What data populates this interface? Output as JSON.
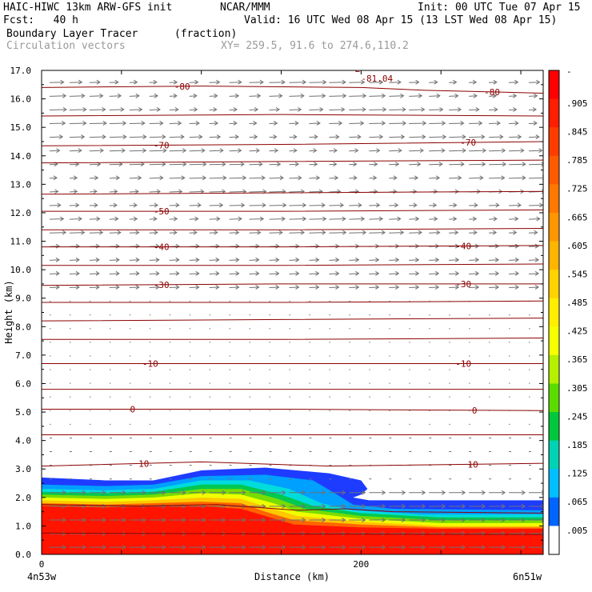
{
  "header": {
    "model": "HAIC-HIWC 13km ARW-GFS init",
    "org": "NCAR/MMM",
    "init": "Init: 00 UTC Tue 07 Apr 15",
    "fcst": "Fcst:   40 h",
    "valid": "Valid: 16 UTC Wed 08 Apr 15 (13 LST Wed 08 Apr 15)",
    "field": "Boundary Layer Tracer",
    "field_units": "(fraction)",
    "overlay": "Circulation vectors",
    "xy": "XY= 259.5, 91.6 to 274.6,110.2"
  },
  "colors": {
    "contour": "#8b0000",
    "vector": "#707070",
    "bar_top": "#ff0000"
  },
  "chart_data": {
    "type": "heatmap",
    "xlabel": "Distance (km)",
    "ylabel": "Height (km)",
    "xlim": [
      0,
      314
    ],
    "ylim": [
      0,
      17
    ],
    "x_ticks": [
      {
        "value": 0,
        "label": "0"
      },
      {
        "value": 200,
        "label": "200"
      }
    ],
    "x_end_labels": {
      "left": "4n53w",
      "right": "6n51w"
    },
    "y_ticks": [
      "0.0",
      "1.0",
      "2.0",
      "3.0",
      "4.0",
      "5.0",
      "6.0",
      "7.0",
      "8.0",
      "9.0",
      "10.0",
      "11.0",
      "12.0",
      "13.0",
      "14.0",
      "15.0",
      "16.0",
      "17.0"
    ],
    "colorbar": {
      "labels": [
        "-",
        ".905",
        ".845",
        ".785",
        ".725",
        ".665",
        ".605",
        ".545",
        ".485",
        ".425",
        ".365",
        ".305",
        ".245",
        ".185",
        ".125",
        ".065",
        ".005"
      ],
      "colors": [
        "#ff0000",
        "#ff1e00",
        "#ff3c00",
        "#ff5a00",
        "#ff7800",
        "#ff9600",
        "#ffb400",
        "#ffd200",
        "#ffee00",
        "#f5ff00",
        "#b4f000",
        "#5adc00",
        "#00c83c",
        "#00d2b4",
        "#00beff",
        "#0064ff",
        "#ffffff"
      ]
    },
    "tracer_layers": [
      {
        "value": 0.005,
        "color": "#1e3cff",
        "top": [
          [
            0,
            2.7
          ],
          [
            40,
            2.6
          ],
          [
            70,
            2.6
          ],
          [
            100,
            2.95
          ],
          [
            140,
            3.05
          ],
          [
            180,
            2.85
          ],
          [
            200,
            2.6
          ],
          [
            204,
            2.3
          ],
          [
            200,
            2.1
          ],
          [
            195,
            2.0
          ],
          [
            205,
            1.9
          ],
          [
            314,
            1.9
          ]
        ]
      },
      {
        "value": 0.065,
        "color": "#00a0ff",
        "top": [
          [
            0,
            2.45
          ],
          [
            40,
            2.4
          ],
          [
            70,
            2.45
          ],
          [
            100,
            2.75
          ],
          [
            140,
            2.8
          ],
          [
            170,
            2.6
          ],
          [
            185,
            2.1
          ],
          [
            195,
            1.75
          ],
          [
            220,
            1.6
          ],
          [
            314,
            1.55
          ]
        ]
      },
      {
        "value": 0.125,
        "color": "#00dcdc",
        "top": [
          [
            0,
            2.3
          ],
          [
            40,
            2.25
          ],
          [
            70,
            2.3
          ],
          [
            100,
            2.6
          ],
          [
            130,
            2.6
          ],
          [
            155,
            2.3
          ],
          [
            175,
            1.8
          ],
          [
            195,
            1.55
          ],
          [
            240,
            1.4
          ],
          [
            314,
            1.4
          ]
        ]
      },
      {
        "value": 0.185,
        "color": "#00c850",
        "top": [
          [
            0,
            2.2
          ],
          [
            40,
            2.15
          ],
          [
            70,
            2.2
          ],
          [
            100,
            2.45
          ],
          [
            125,
            2.45
          ],
          [
            150,
            2.1
          ],
          [
            170,
            1.7
          ],
          [
            200,
            1.45
          ],
          [
            250,
            1.3
          ],
          [
            314,
            1.3
          ]
        ]
      },
      {
        "value": 0.245,
        "color": "#78dc00",
        "top": [
          [
            0,
            2.1
          ],
          [
            40,
            2.05
          ],
          [
            70,
            2.1
          ],
          [
            100,
            2.3
          ],
          [
            125,
            2.3
          ],
          [
            148,
            1.95
          ],
          [
            165,
            1.6
          ],
          [
            200,
            1.35
          ],
          [
            250,
            1.2
          ],
          [
            314,
            1.2
          ]
        ]
      },
      {
        "value": 0.365,
        "color": "#f0ff00",
        "top": [
          [
            0,
            2.0
          ],
          [
            40,
            1.95
          ],
          [
            70,
            2.0
          ],
          [
            100,
            2.15
          ],
          [
            125,
            2.1
          ],
          [
            145,
            1.8
          ],
          [
            160,
            1.5
          ],
          [
            200,
            1.25
          ],
          [
            250,
            1.1
          ],
          [
            314,
            1.1
          ]
        ]
      },
      {
        "value": 0.485,
        "color": "#ffc800",
        "top": [
          [
            0,
            1.9
          ],
          [
            40,
            1.85
          ],
          [
            70,
            1.9
          ],
          [
            100,
            2.0
          ],
          [
            125,
            1.95
          ],
          [
            142,
            1.65
          ],
          [
            160,
            1.35
          ],
          [
            200,
            1.15
          ],
          [
            250,
            1.0
          ],
          [
            314,
            1.0
          ]
        ]
      },
      {
        "value": 0.665,
        "color": "#ff6400",
        "top": [
          [
            0,
            1.8
          ],
          [
            40,
            1.75
          ],
          [
            70,
            1.8
          ],
          [
            100,
            1.85
          ],
          [
            125,
            1.8
          ],
          [
            140,
            1.5
          ],
          [
            158,
            1.2
          ],
          [
            200,
            1.05
          ],
          [
            250,
            0.95
          ],
          [
            314,
            0.95
          ]
        ]
      },
      {
        "value": 0.905,
        "color": "#ff1400",
        "top": [
          [
            0,
            1.7
          ],
          [
            40,
            1.65
          ],
          [
            70,
            1.7
          ],
          [
            100,
            1.7
          ],
          [
            125,
            1.6
          ],
          [
            140,
            1.35
          ],
          [
            158,
            1.05
          ],
          [
            200,
            0.95
          ],
          [
            250,
            0.9
          ],
          [
            314,
            0.9
          ]
        ]
      }
    ],
    "temperature_contours": [
      {
        "value": -80,
        "label": "-80",
        "label_x": [
          88,
          282
        ],
        "points": [
          [
            0,
            16.4
          ],
          [
            100,
            16.45
          ],
          [
            200,
            16.4
          ],
          [
            240,
            16.3
          ],
          [
            314,
            16.2
          ]
        ]
      },
      {
        "value": -75,
        "label": "",
        "label_x": [],
        "points": [
          [
            0,
            15.4
          ],
          [
            150,
            15.45
          ],
          [
            314,
            15.4
          ]
        ]
      },
      {
        "value": -70,
        "label": "-70",
        "label_x": [
          75,
          267
        ],
        "points": [
          [
            0,
            14.35
          ],
          [
            150,
            14.4
          ],
          [
            314,
            14.5
          ]
        ]
      },
      {
        "value": -65,
        "label": "",
        "label_x": [],
        "points": [
          [
            0,
            13.75
          ],
          [
            150,
            13.8
          ],
          [
            314,
            13.85
          ]
        ]
      },
      {
        "value": -60,
        "label": "",
        "label_x": [],
        "points": [
          [
            0,
            12.65
          ],
          [
            150,
            12.7
          ],
          [
            314,
            12.75
          ]
        ]
      },
      {
        "value": -50,
        "label": "-50",
        "label_x": [
          75
        ],
        "points": [
          [
            0,
            12.05
          ],
          [
            150,
            12.05
          ],
          [
            314,
            12.1
          ]
        ]
      },
      {
        "value": -45,
        "label": "",
        "label_x": [],
        "points": [
          [
            0,
            11.4
          ],
          [
            150,
            11.4
          ],
          [
            314,
            11.45
          ]
        ]
      },
      {
        "value": -40,
        "label": "-40",
        "label_x": [
          75,
          264
        ],
        "points": [
          [
            0,
            10.8
          ],
          [
            150,
            10.8
          ],
          [
            314,
            10.85
          ]
        ]
      },
      {
        "value": -35,
        "label": "",
        "label_x": [],
        "points": [
          [
            0,
            10.15
          ],
          [
            150,
            10.15
          ],
          [
            314,
            10.2
          ]
        ]
      },
      {
        "value": -30,
        "label": "-30",
        "label_x": [
          75,
          264
        ],
        "points": [
          [
            0,
            9.45
          ],
          [
            150,
            9.5
          ],
          [
            314,
            9.5
          ]
        ]
      },
      {
        "value": -25,
        "label": "",
        "label_x": [],
        "points": [
          [
            0,
            8.85
          ],
          [
            150,
            8.85
          ],
          [
            314,
            8.9
          ]
        ]
      },
      {
        "value": -20,
        "label": "",
        "label_x": [],
        "points": [
          [
            0,
            8.2
          ],
          [
            150,
            8.25
          ],
          [
            314,
            8.3
          ]
        ]
      },
      {
        "value": -15,
        "label": "",
        "label_x": [],
        "points": [
          [
            0,
            7.55
          ],
          [
            150,
            7.55
          ],
          [
            314,
            7.6
          ]
        ]
      },
      {
        "value": -10,
        "label": "-10",
        "label_x": [
          68,
          264
        ],
        "points": [
          [
            0,
            6.7
          ],
          [
            150,
            6.7
          ],
          [
            314,
            6.7
          ]
        ]
      },
      {
        "value": -5,
        "label": "",
        "label_x": [],
        "points": [
          [
            0,
            5.8
          ],
          [
            150,
            5.8
          ],
          [
            314,
            5.8
          ]
        ]
      },
      {
        "value": 0,
        "label": "0",
        "label_x": [
          57,
          271
        ],
        "points": [
          [
            0,
            5.1
          ],
          [
            150,
            5.1
          ],
          [
            314,
            5.05
          ]
        ]
      },
      {
        "value": 5,
        "label": "",
        "label_x": [],
        "points": [
          [
            0,
            4.2
          ],
          [
            150,
            4.2
          ],
          [
            314,
            4.2
          ]
        ]
      },
      {
        "value": 10,
        "label": "10",
        "label_x": [
          64,
          270
        ],
        "points": [
          [
            0,
            3.1
          ],
          [
            100,
            3.25
          ],
          [
            180,
            3.1
          ],
          [
            314,
            3.2
          ]
        ]
      },
      {
        "value": 15,
        "label": "",
        "label_x": [],
        "points": [
          [
            0,
            1.75
          ],
          [
            60,
            1.7
          ],
          [
            110,
            1.75
          ],
          [
            160,
            1.55
          ],
          [
            190,
            1.6
          ],
          [
            220,
            1.5
          ],
          [
            314,
            1.45
          ]
        ]
      },
      {
        "value": 20,
        "label": "",
        "label_x": [],
        "points": [
          [
            0,
            0.75
          ],
          [
            150,
            0.72
          ],
          [
            314,
            0.7
          ]
        ]
      }
    ],
    "annotations": [
      {
        "text": "-81.04",
        "x": 200,
        "y": 16.6
      },
      {
        "text": "L",
        "x": 196,
        "y": 16.95
      }
    ]
  }
}
